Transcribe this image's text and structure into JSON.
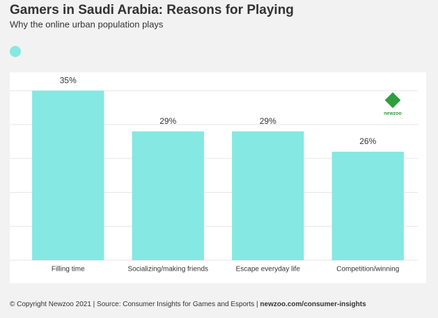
{
  "chart_data": {
    "type": "bar",
    "title": "Gamers in Saudi Arabia: Reasons for Playing",
    "subtitle": "Why the online urban population plays",
    "categories": [
      "Filling time",
      "Socializing/making friends",
      "Escape everyday life",
      "Competition/winning"
    ],
    "values": [
      35,
      29,
      29,
      26
    ],
    "value_labels": [
      "35%",
      "29%",
      "29%",
      "26%"
    ],
    "color": "#86e8e2",
    "ylim": [
      10,
      37.7
    ],
    "yticks": [
      10,
      15,
      20,
      25,
      30,
      35
    ],
    "grid": true,
    "logo": "newzoo",
    "footer": {
      "text": "© Copyright Newzoo 2021 | Source: Consumer Insights for Games and Esports | ",
      "link": "newzoo.com/consumer-insights"
    }
  }
}
